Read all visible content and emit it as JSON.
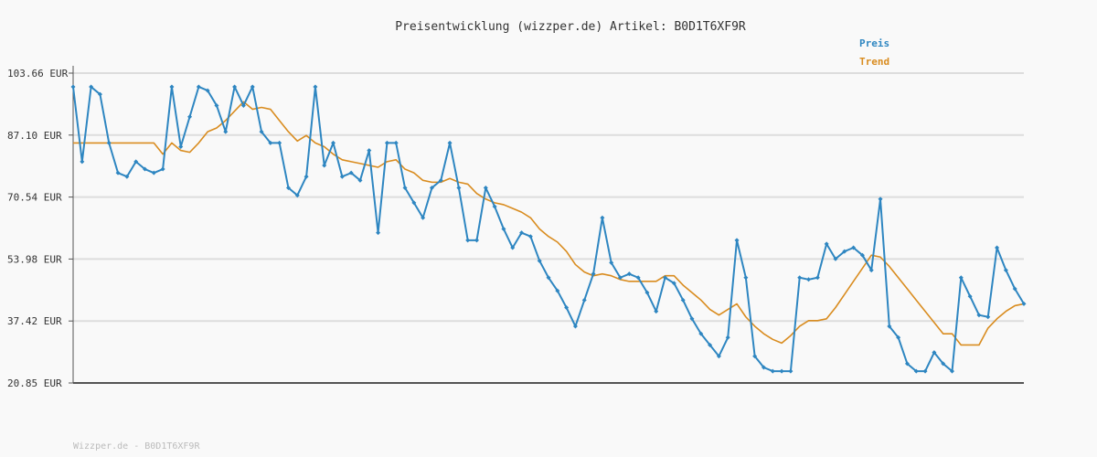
{
  "chart_data": {
    "type": "line",
    "title": "Preisentwicklung (wizzper.de) Artikel: B0D1T6XF9R",
    "ylim": [
      20.85,
      103.66
    ],
    "yticks": [
      "103.66 EUR",
      "87.10 EUR",
      "70.54 EUR",
      "53.98 EUR",
      "37.42 EUR",
      "20.85 EUR"
    ],
    "grid": true,
    "legend_position": "top-right",
    "series": [
      {
        "name": "Preis",
        "color": "#2e86c1",
        "values": [
          100.0,
          80.0,
          100.0,
          98.0,
          85.0,
          77.0,
          76.0,
          80.0,
          78.0,
          77.0,
          78.0,
          100.0,
          84.0,
          92.0,
          100.0,
          99.0,
          95.0,
          88.0,
          100.0,
          95.0,
          100.0,
          88.0,
          85.0,
          85.0,
          73.0,
          71.0,
          76.0,
          100.0,
          79.0,
          85.0,
          76.0,
          77.0,
          75.0,
          83.0,
          61.0,
          85.0,
          85.0,
          73.0,
          69.0,
          65.0,
          73.0,
          75.0,
          85.0,
          73.0,
          59.0,
          59.0,
          73.0,
          68.0,
          62.0,
          57.0,
          61.0,
          60.0,
          53.5,
          49.0,
          45.5,
          41.0,
          36.0,
          43.0,
          50.0,
          65.0,
          53.0,
          49.0,
          50.0,
          49.0,
          45.0,
          40.0,
          49.0,
          47.5,
          43.0,
          38.0,
          34.0,
          31.0,
          28.0,
          33.0,
          59.0,
          49.0,
          28.0,
          25.0,
          24.0,
          24.0,
          24.0,
          49.0,
          48.5,
          49.0,
          58.0,
          54.0,
          56.0,
          57.0,
          55.0,
          51.0,
          70.0,
          36.0,
          33.0,
          26.0,
          24.0,
          24.0,
          29.0,
          26.0,
          24.0,
          49.0,
          44.0,
          39.0,
          38.5,
          57.0,
          51.0,
          46.0,
          42.0
        ]
      },
      {
        "name": "Trend",
        "color": "#d98c1f",
        "values": [
          85.0,
          85.0,
          85.0,
          85.0,
          85.0,
          85.0,
          85.0,
          85.0,
          85.0,
          85.0,
          82.0,
          85.0,
          83.0,
          82.5,
          85.0,
          88.0,
          89.0,
          91.0,
          93.5,
          96.0,
          94.0,
          94.5,
          94.0,
          91.0,
          88.0,
          85.5,
          87.0,
          85.0,
          84.0,
          82.0,
          80.5,
          80.0,
          79.5,
          79.0,
          78.5,
          80.0,
          80.5,
          78.0,
          77.0,
          75.0,
          74.5,
          74.5,
          75.5,
          74.5,
          74.0,
          71.5,
          70.0,
          69.0,
          68.5,
          67.5,
          66.5,
          65.0,
          62.0,
          60.0,
          58.5,
          56.0,
          52.5,
          50.5,
          49.5,
          50.0,
          49.5,
          48.5,
          48.0,
          48.0,
          48.0,
          48.0,
          49.5,
          49.5,
          47.0,
          45.0,
          43.0,
          40.5,
          39.0,
          40.5,
          42.0,
          38.5,
          36.0,
          34.0,
          32.5,
          31.5,
          33.5,
          36.0,
          37.5,
          37.5,
          38.0,
          41.0,
          44.5,
          48.0,
          51.5,
          55.0,
          54.5,
          52.0,
          49.0,
          46.0,
          43.0,
          40.0,
          37.0,
          34.0,
          34.0,
          31.0,
          31.0,
          31.0,
          35.5,
          38.0,
          40.0,
          41.5,
          42.0
        ]
      }
    ]
  },
  "footer": "Wizzper.de - B0D1T6XF9R"
}
